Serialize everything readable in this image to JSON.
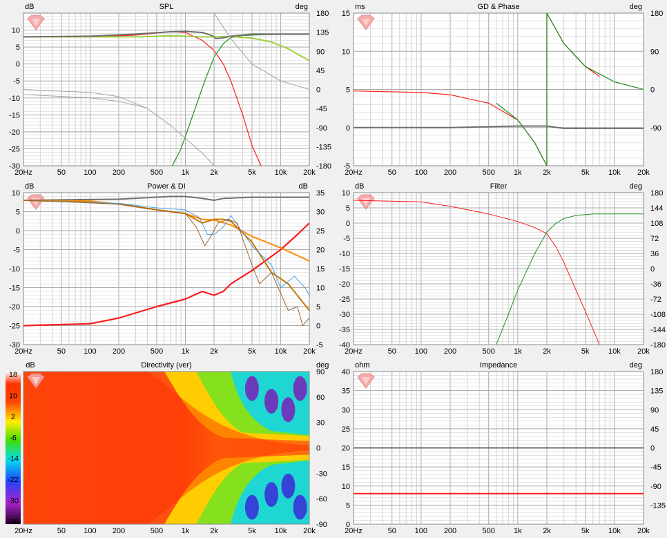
{
  "colors": {
    "background": "#f0f0f0",
    "plot_bg": "#ffffff",
    "grid": "#d2d2d2",
    "grid_major": "#a8a8a8",
    "red": "#ff1a1a",
    "green": "#1a8f1a",
    "lightgreen": "#9ccf3c",
    "gray": "#6e6e6e",
    "lightgray": "#a0a0a0",
    "orange": "#ff8c00",
    "brown": "#996633",
    "blue": "#4aa3e8",
    "dark_orange": "#c87800"
  },
  "icon": "speaker-logo-icon",
  "x_ticks": [
    "20Hz",
    "50",
    "100",
    "200",
    "500",
    "1k",
    "2k",
    "5k",
    "10k",
    "20k"
  ],
  "x_tick_values": [
    20,
    50,
    100,
    200,
    500,
    1000,
    2000,
    5000,
    10000,
    20000
  ],
  "chart_data": [
    {
      "id": "spl",
      "type": "line",
      "title": "SPL",
      "ylabel": "dB",
      "y2label": "deg",
      "ylim": [
        -30,
        15
      ],
      "y2lim": [
        -180,
        180
      ],
      "yticks": [
        "-30",
        "-25",
        "-20",
        "-15",
        "-10",
        "-5",
        "0",
        "5",
        "10"
      ],
      "ytick_values": [
        -30,
        -25,
        -20,
        -15,
        -10,
        -5,
        0,
        5,
        10
      ],
      "y2ticks": [
        "-180",
        "-135",
        "-90",
        "-45",
        "0",
        "45",
        "90",
        "135",
        "180"
      ],
      "y2tick_values": [
        -180,
        -135,
        -90,
        -45,
        0,
        45,
        90,
        135,
        180
      ],
      "series": [
        {
          "color": "red",
          "width": 1.2,
          "x": [
            20,
            100,
            300,
            700,
            1000,
            1500,
            2000,
            2500,
            3000,
            4000,
            5000,
            6000,
            6500
          ],
          "y": [
            8,
            8,
            8.5,
            9.5,
            9.3,
            7,
            4,
            0,
            -5,
            -15,
            -24,
            -29,
            -31
          ]
        },
        {
          "color": "green",
          "width": 1.2,
          "x": [
            700,
            900,
            1200,
            1600,
            2000,
            2500,
            3000,
            4000,
            6000,
            10000,
            20000
          ],
          "y": [
            -31,
            -25,
            -15,
            -5,
            2,
            6,
            7.8,
            8.4,
            8.6,
            8.7,
            8.7
          ]
        },
        {
          "color": "lightgreen",
          "width": 2,
          "x": [
            20,
            100,
            300,
            700,
            1000,
            1500,
            2000,
            2500,
            3000,
            5000,
            8000,
            12000,
            16000,
            20000
          ],
          "y": [
            8,
            8,
            8,
            8.3,
            8.2,
            8,
            8,
            8.1,
            8.1,
            7.6,
            6.5,
            4.5,
            2.5,
            1
          ]
        },
        {
          "color": "gray",
          "width": 2,
          "x": [
            20,
            100,
            300,
            700,
            1000,
            1500,
            1900,
            2100,
            2400,
            3000,
            5000,
            10000,
            20000
          ],
          "y": [
            8,
            8.2,
            8.8,
            9.5,
            9.6,
            9.3,
            8.4,
            7.5,
            7.6,
            8.2,
            8.8,
            8.8,
            8.8
          ]
        },
        {
          "color": "lightgray",
          "width": 1,
          "axis": "y2",
          "x": [
            20,
            100,
            200,
            400,
            700,
            1000,
            1500,
            2000,
            2001,
            3000,
            5000,
            10000,
            20000
          ],
          "y": [
            0,
            -7,
            -17,
            -45,
            -85,
            -115,
            -150,
            -180,
            180,
            120,
            60,
            20,
            0
          ]
        },
        {
          "color": "lightgray",
          "width": 1,
          "x": [
            20,
            100,
            200,
            400
          ],
          "y": [
            -9,
            -10,
            -11,
            -13
          ]
        }
      ]
    },
    {
      "id": "gd",
      "type": "line",
      "title": "GD & Phase",
      "ylabel": "ms",
      "y2label": "deg",
      "ylim": [
        -5,
        15
      ],
      "y2lim": [
        -180,
        180
      ],
      "yticks": [
        "-5",
        "0",
        "5",
        "10",
        "15"
      ],
      "ytick_values": [
        -5,
        0,
        5,
        10,
        15
      ],
      "y2ticks": [
        "-90",
        "0",
        "90",
        "180"
      ],
      "y2tick_values": [
        -90,
        0,
        90,
        180
      ],
      "series": [
        {
          "color": "red",
          "width": 1.2,
          "x": [
            20,
            100,
            200,
            500,
            1000,
            1500,
            2000
          ],
          "y": [
            4.8,
            4.6,
            4.3,
            3.2,
            1,
            -2,
            -5
          ]
        },
        {
          "color": "red",
          "width": 1.2,
          "x": [
            2000,
            2001,
            3000,
            5000,
            7000
          ],
          "y": [
            -5,
            15,
            11,
            8,
            6.7
          ]
        },
        {
          "color": "green",
          "width": 1.2,
          "x": [
            600,
            1000,
            1500,
            2000
          ],
          "y": [
            3.2,
            1,
            -2,
            -5
          ]
        },
        {
          "color": "green",
          "width": 1.2,
          "x": [
            2000,
            2001,
            3000,
            5000,
            10000,
            20000
          ],
          "y": [
            -5,
            15,
            11,
            8,
            6,
            5
          ]
        },
        {
          "color": "gray",
          "width": 2,
          "x": [
            20,
            200,
            1000,
            2000,
            3000,
            10000,
            20000
          ],
          "y": [
            0,
            0,
            0.2,
            0.2,
            -0.1,
            -0.1,
            -0.1
          ]
        }
      ]
    },
    {
      "id": "power",
      "type": "line",
      "title": "Power & DI",
      "ylabel": "dB",
      "y2label": "dB",
      "ylim": [
        -30,
        10
      ],
      "y2lim": [
        -5,
        35
      ],
      "yticks": [
        "-30",
        "-25",
        "-20",
        "-15",
        "-10",
        "-5",
        "0",
        "5",
        "10"
      ],
      "ytick_values": [
        -30,
        -25,
        -20,
        -15,
        -10,
        -5,
        0,
        5,
        10
      ],
      "y2ticks": [
        "-5",
        "0",
        "5",
        "10",
        "15",
        "20",
        "25",
        "30",
        "35"
      ],
      "y2tick_values": [
        -5,
        0,
        5,
        10,
        15,
        20,
        25,
        30,
        35
      ],
      "series": [
        {
          "color": "red",
          "width": 2.2,
          "x": [
            20,
            100,
            200,
            500,
            1000,
            1500,
            2000,
            2500,
            3000,
            5000,
            10000,
            15000,
            20000
          ],
          "y": [
            -25,
            -24.5,
            -23,
            -20,
            -18,
            -16,
            -17,
            -16,
            -14,
            -10.5,
            -5,
            -1,
            2
          ]
        },
        {
          "color": "gray",
          "width": 2,
          "x": [
            20,
            200,
            700,
            1000,
            1500,
            2000,
            2500,
            5000,
            20000
          ],
          "y": [
            8,
            8.3,
            9,
            9,
            8.5,
            8,
            8.5,
            8.8,
            8.8
          ]
        },
        {
          "color": "orange",
          "width": 2,
          "x": [
            20,
            100,
            200,
            500,
            1000,
            1500,
            2000,
            3000,
            5000,
            10000,
            20000
          ],
          "y": [
            8,
            7.8,
            7,
            5.5,
            4.5,
            3,
            2.8,
            1.5,
            -1.5,
            -4.5,
            -8
          ]
        },
        {
          "color": "dark_orange",
          "width": 2,
          "x": [
            20,
            100,
            200,
            500,
            1000,
            1500,
            2000,
            2500,
            3000,
            5000,
            8000,
            12000,
            20000
          ],
          "y": [
            8,
            7.5,
            7,
            5.5,
            4.5,
            2,
            3,
            3,
            2.5,
            -3,
            -11,
            -14,
            -21
          ]
        },
        {
          "color": "blue",
          "width": 1,
          "x": [
            20,
            200,
            500,
            1000,
            1400,
            1700,
            2000,
            2500,
            3000,
            5000,
            8000,
            10000,
            14000,
            18000,
            20000
          ],
          "y": [
            8,
            7.2,
            6,
            5.5,
            3.5,
            -1,
            -1,
            1,
            4,
            -4,
            -9,
            -15,
            -12,
            -15,
            -17
          ]
        },
        {
          "color": "brown",
          "width": 1,
          "x": [
            20,
            200,
            500,
            1000,
            1300,
            1600,
            1800,
            2200,
            2800,
            3500,
            5000,
            6000,
            8000,
            12000,
            15000,
            17000,
            20000
          ],
          "y": [
            8,
            7,
            5.5,
            4.5,
            1,
            -4,
            -2,
            2,
            3,
            2,
            -9,
            -14,
            -11,
            -21,
            -20,
            -25,
            -23
          ]
        }
      ]
    },
    {
      "id": "filter",
      "type": "line",
      "title": "Filter",
      "ylabel": "dB",
      "y2label": "deg",
      "ylim": [
        -40,
        10
      ],
      "y2lim": [
        -180,
        180
      ],
      "yticks": [
        "-40",
        "-35",
        "-30",
        "-25",
        "-20",
        "-15",
        "-10",
        "-5",
        "0",
        "5",
        "10"
      ],
      "ytick_values": [
        -40,
        -35,
        -30,
        -25,
        -20,
        -15,
        -10,
        -5,
        0,
        5,
        10
      ],
      "y2ticks": [
        "-180",
        "-144",
        "-108",
        "-72",
        "-36",
        "0",
        "36",
        "72",
        "108",
        "144",
        "180"
      ],
      "y2tick_values": [
        -180,
        -144,
        -108,
        -72,
        -36,
        0,
        36,
        72,
        108,
        144,
        180
      ],
      "series": [
        {
          "color": "red",
          "width": 1,
          "x": [
            20,
            100,
            200,
            500,
            1000,
            1500,
            2000,
            2500,
            3000,
            4000,
            5000,
            7000
          ],
          "y": [
            7.5,
            7,
            5.5,
            3,
            0.5,
            -1.5,
            -3.5,
            -8,
            -13,
            -22,
            -29,
            -40
          ]
        },
        {
          "color": "green",
          "width": 1,
          "x": [
            600,
            800,
            1000,
            1500,
            2000,
            2500,
            3000,
            4000,
            6000,
            10000,
            20000
          ],
          "y": [
            -40,
            -30,
            -22,
            -10,
            -3,
            0,
            1.5,
            2.5,
            3,
            3,
            3
          ]
        }
      ]
    },
    {
      "id": "impedance",
      "type": "line",
      "title": "Impedance",
      "ylabel": "ohm",
      "y2label": "deg",
      "ylim": [
        0,
        40
      ],
      "y2lim": [
        -180,
        180
      ],
      "yticks": [
        "0",
        "5",
        "10",
        "15",
        "20",
        "25",
        "30",
        "35",
        "40"
      ],
      "ytick_values": [
        0,
        5,
        10,
        15,
        20,
        25,
        30,
        35,
        40
      ],
      "y2ticks": [
        "-135",
        "-90",
        "-45",
        "0",
        "45",
        "90",
        "135",
        "180"
      ],
      "y2tick_values": [
        -135,
        -90,
        -45,
        0,
        45,
        90,
        135,
        180
      ],
      "series": [
        {
          "color": "gray",
          "width": 2,
          "x": [
            20,
            20000
          ],
          "y": [
            20,
            20
          ]
        },
        {
          "color": "red",
          "width": 2,
          "x": [
            20,
            20000
          ],
          "y": [
            8,
            8
          ]
        }
      ]
    },
    {
      "id": "directivity",
      "type": "heatmap",
      "title": "Directivity (ver)",
      "y2label": "deg",
      "ylim": [
        -90,
        90
      ],
      "y2ticks": [
        "-90",
        "-60",
        "-30",
        "0",
        "30",
        "60",
        "90"
      ],
      "y2tick_values": [
        -90,
        -60,
        -30,
        0,
        30,
        60,
        90
      ],
      "colorbar_label": "dB",
      "colorbar_ticks": [
        "18",
        "10",
        "2",
        "-6",
        "-14",
        "-22",
        "-30",
        "-38"
      ]
    }
  ]
}
